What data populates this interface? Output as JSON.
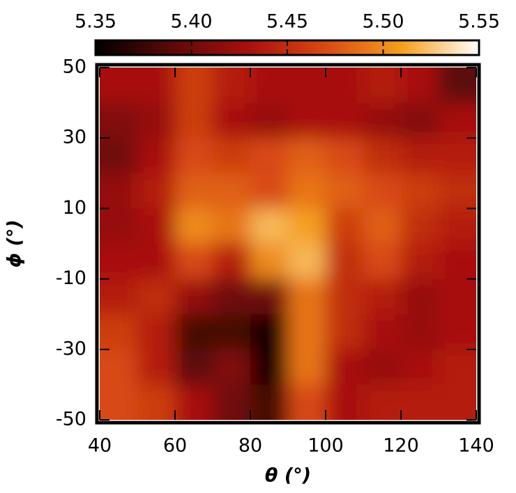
{
  "chart_data": {
    "type": "heatmap",
    "xlabel": "θ (°)",
    "ylabel": "ϕ (°)",
    "x": [
      45,
      55,
      65,
      75,
      85,
      95,
      105,
      115,
      125,
      135
    ],
    "y": [
      45,
      35,
      25,
      15,
      5,
      -5,
      -15,
      -25,
      -35,
      -45
    ],
    "z": [
      [
        5.43,
        5.43,
        5.46,
        5.44,
        5.43,
        5.43,
        5.43,
        5.44,
        5.43,
        5.39
      ],
      [
        5.41,
        5.42,
        5.46,
        5.43,
        5.42,
        5.43,
        5.43,
        5.42,
        5.41,
        5.43
      ],
      [
        5.4,
        5.43,
        5.47,
        5.46,
        5.47,
        5.48,
        5.47,
        5.45,
        5.44,
        5.44
      ],
      [
        5.42,
        5.44,
        5.48,
        5.48,
        5.47,
        5.49,
        5.48,
        5.47,
        5.46,
        5.45
      ],
      [
        5.42,
        5.43,
        5.5,
        5.49,
        5.52,
        5.51,
        5.46,
        5.48,
        5.45,
        5.44
      ],
      [
        5.43,
        5.43,
        5.47,
        5.44,
        5.5,
        5.52,
        5.45,
        5.47,
        5.44,
        5.43
      ],
      [
        5.44,
        5.45,
        5.42,
        5.4,
        5.4,
        5.49,
        5.45,
        5.44,
        5.42,
        5.43
      ],
      [
        5.46,
        5.44,
        5.38,
        5.38,
        5.36,
        5.49,
        5.45,
        5.43,
        5.42,
        5.43
      ],
      [
        5.47,
        5.44,
        5.39,
        5.41,
        5.36,
        5.49,
        5.43,
        5.42,
        5.43,
        5.44
      ],
      [
        5.47,
        5.46,
        5.43,
        5.4,
        5.38,
        5.47,
        5.43,
        5.44,
        5.44,
        5.44
      ]
    ],
    "xlim": [
      40,
      140
    ],
    "xticks": [
      40,
      60,
      80,
      100,
      120,
      140
    ],
    "ylim": [
      -50,
      50
    ],
    "yticks": [
      -50,
      -30,
      -10,
      10,
      30,
      50
    ],
    "zlim": [
      5.35,
      5.55
    ],
    "zticks": [
      {
        "value": 5.35,
        "label": "5.35"
      },
      {
        "value": 5.4,
        "label": "5.40"
      },
      {
        "value": 5.45,
        "label": "5.45"
      },
      {
        "value": 5.5,
        "label": "5.50"
      },
      {
        "value": 5.55,
        "label": "5.55"
      }
    ],
    "colormap": [
      "#000000",
      "#5c0a08",
      "#a8110f",
      "#d84a12",
      "#f5a020",
      "#ffffff"
    ]
  }
}
